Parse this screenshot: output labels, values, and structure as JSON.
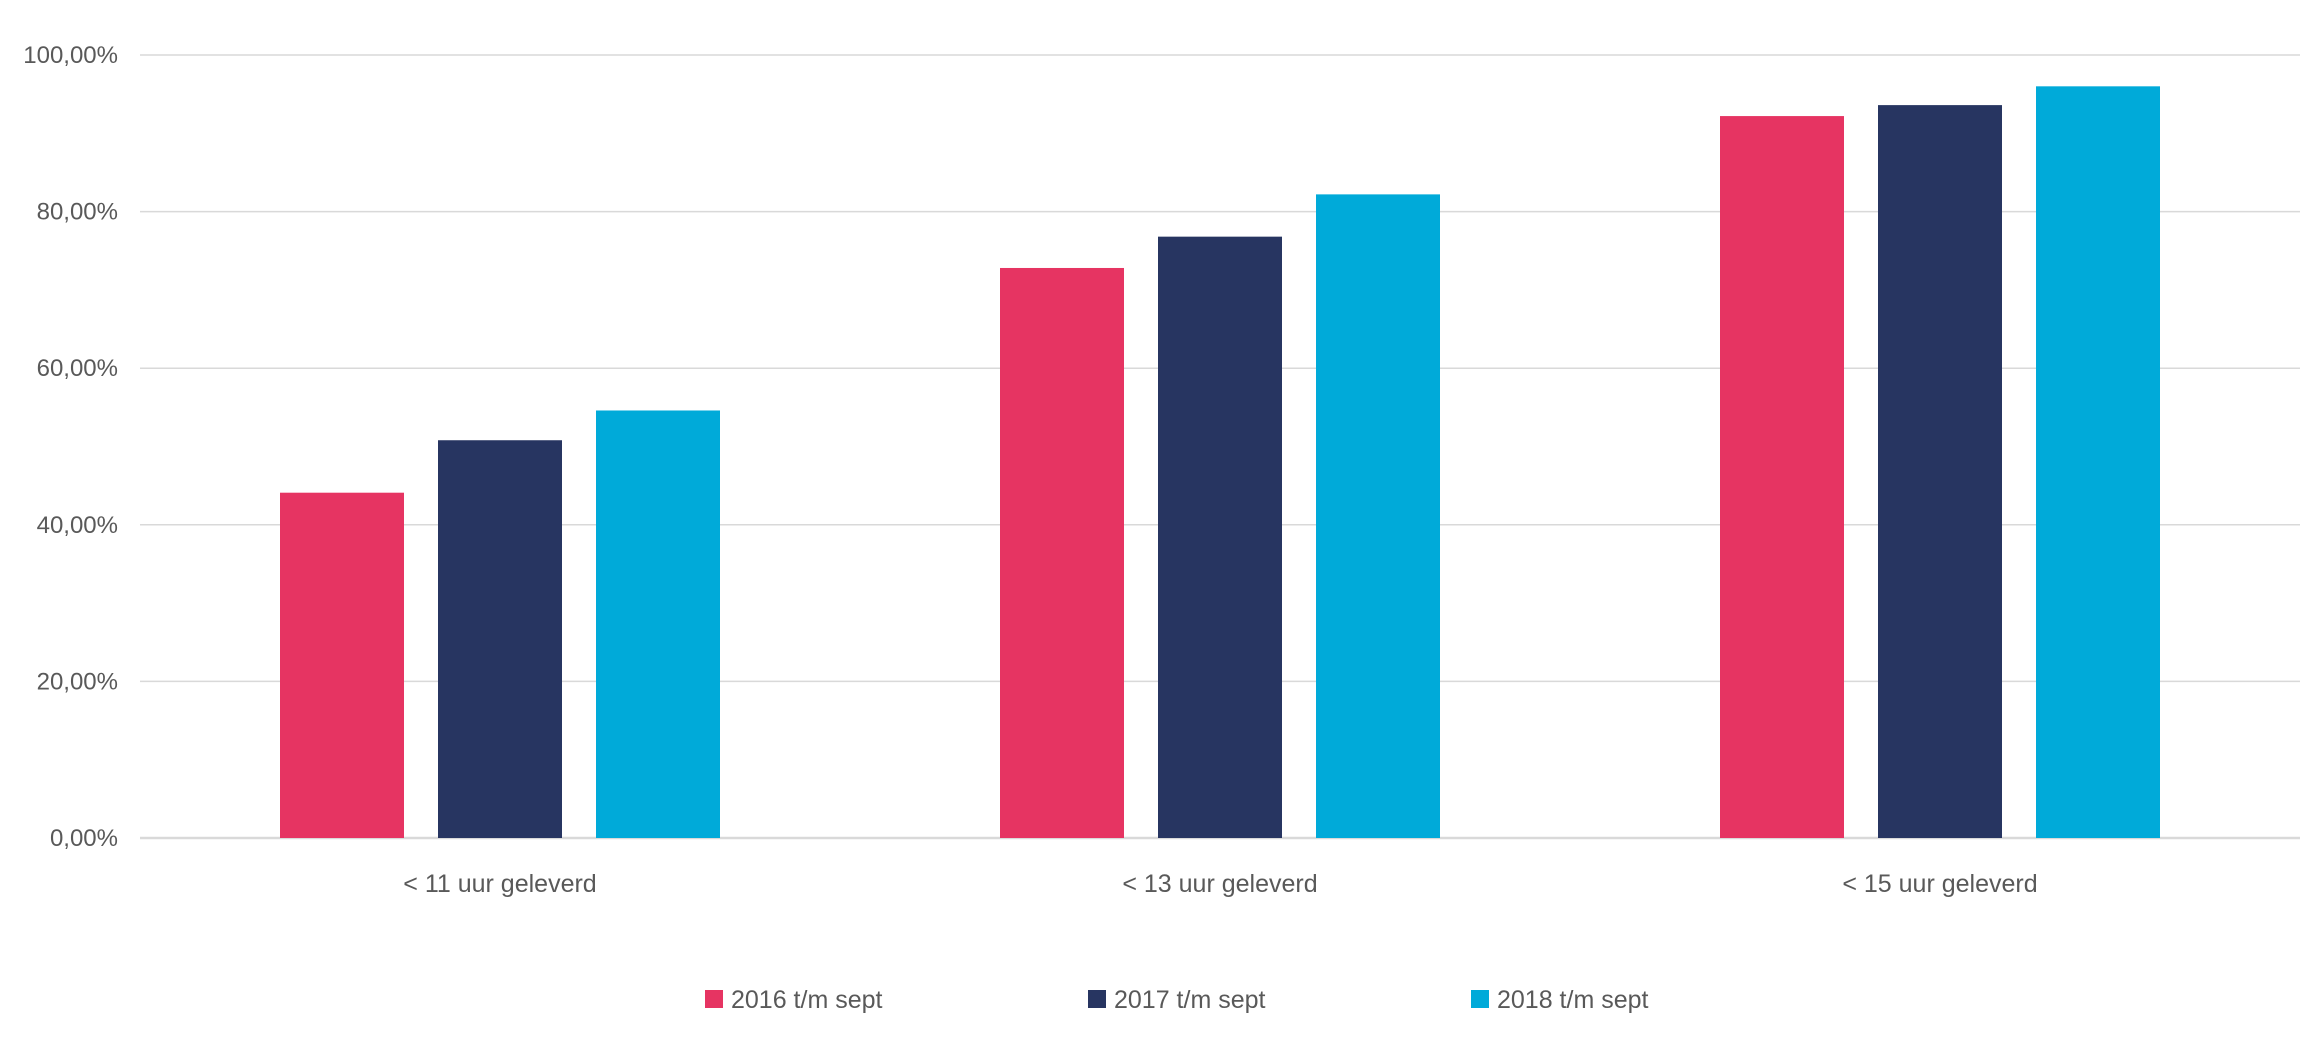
{
  "chart_data": {
    "type": "bar",
    "title": "",
    "xlabel": "",
    "ylabel": "",
    "categories": [
      "< 11 uur geleverd",
      "< 13 uur geleverd",
      "< 15 uur geleverd"
    ],
    "series": [
      {
        "name": "2016 t/m sept",
        "color": "#e63462",
        "values": [
          44.1,
          72.8,
          92.2
        ]
      },
      {
        "name": "2017 t/m sept",
        "color": "#273561",
        "values": [
          50.8,
          76.8,
          93.6
        ]
      },
      {
        "name": "2018 t/m sept",
        "color": "#00aad9",
        "values": [
          54.6,
          82.2,
          96.0
        ]
      }
    ],
    "ylim": [
      0,
      100
    ],
    "yticks": [
      0,
      20,
      40,
      60,
      80,
      100
    ],
    "ytick_labels": [
      "0,00%",
      "20,00%",
      "40,00%",
      "60,00%",
      "80,00%",
      "100,00%"
    ],
    "grid": true,
    "legend_position": "bottom",
    "gridline_color": "#d9d9d9",
    "text_color": "#595959"
  }
}
